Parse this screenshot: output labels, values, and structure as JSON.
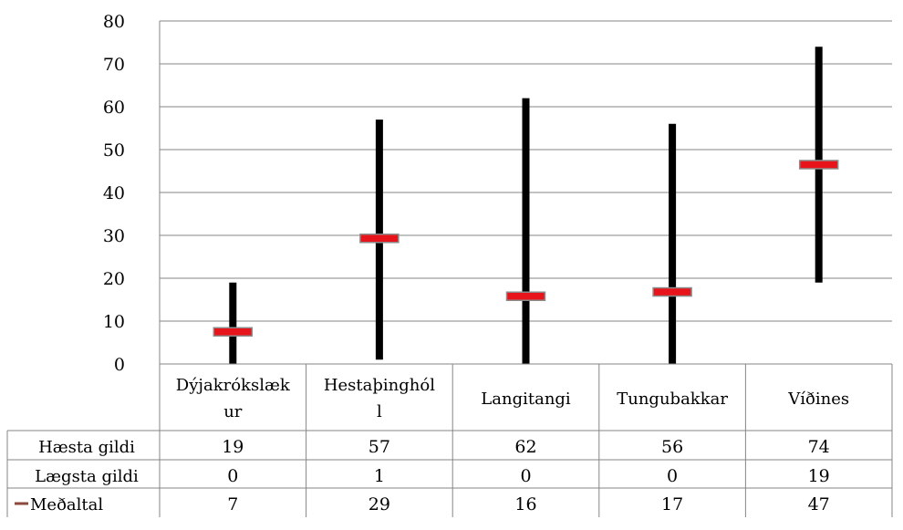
{
  "chart_data": {
    "type": "stock",
    "title": "",
    "xlabel": "",
    "ylabel": "",
    "ylim": [
      0,
      80
    ],
    "yticks": [
      0,
      10,
      20,
      30,
      40,
      50,
      60,
      70,
      80
    ],
    "grid": true,
    "categories": [
      "Dýjakrókslækur",
      "Hestaþingholl",
      "Langitangi",
      "Tungubakkar",
      "Víðines"
    ],
    "category_label_lines": [
      [
        "Dýjakrókslæk",
        "ur"
      ],
      [
        "Hestaþinghól",
        "l"
      ],
      [
        "Langitangi"
      ],
      [
        "Tungubakkar"
      ],
      [
        "Víðines"
      ]
    ],
    "series": [
      {
        "name": "Hæsta gildi",
        "values": [
          19,
          57,
          62,
          56,
          74
        ]
      },
      {
        "name": "Lægsta gildi",
        "values": [
          0,
          1,
          0,
          0,
          19
        ]
      },
      {
        "name": "Meðaltal",
        "values": [
          7,
          29,
          16,
          17,
          47
        ]
      }
    ],
    "plotted_means": [
      7.5,
      29.3,
      15.8,
      16.8,
      46.5
    ],
    "data_table": true,
    "colors": {
      "range_line": "#000000",
      "mean_marker": "#e8141b",
      "mean_marker_border": "#8c8c8c",
      "legend_key": "#8b4a3c",
      "grid": "#868686"
    }
  }
}
